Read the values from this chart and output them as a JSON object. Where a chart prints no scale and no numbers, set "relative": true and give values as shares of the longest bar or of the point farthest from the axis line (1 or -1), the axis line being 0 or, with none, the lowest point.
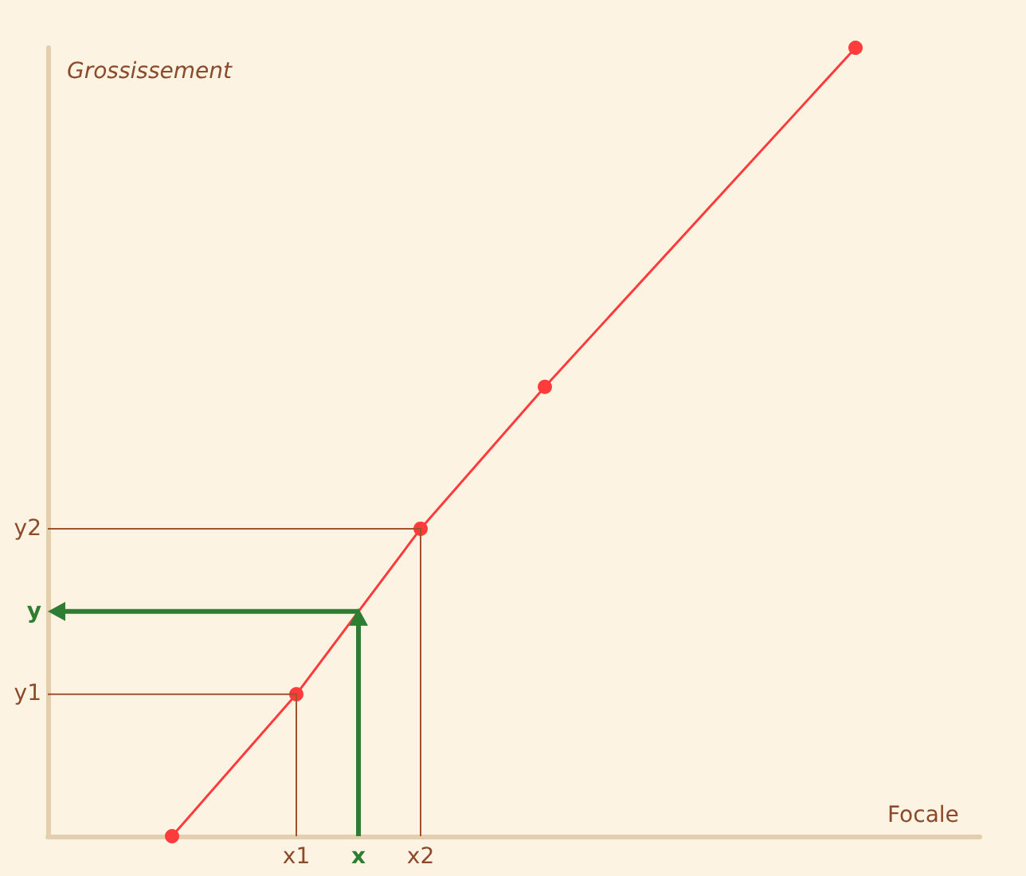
{
  "chart_data": {
    "type": "line",
    "xlabel": "Focale",
    "ylabel": "Grossissement",
    "relative": true,
    "categories": [
      null,
      null,
      null,
      null,
      "x1",
      "x",
      "x2",
      null,
      null,
      null,
      null,
      null,
      null,
      null,
      null,
      null
    ],
    "annotations": [
      "y1",
      "y",
      "y2"
    ],
    "marker": "circle",
    "line_style": "solid",
    "series": [
      {
        "color": "#ff3b3b",
        "values": [
          null,
          null,
          0,
          null,
          0.18,
          null,
          0.39,
          null,
          0.57,
          null,
          null,
          null,
          null,
          1.0,
          null,
          null
        ]
      }
    ]
  }
}
